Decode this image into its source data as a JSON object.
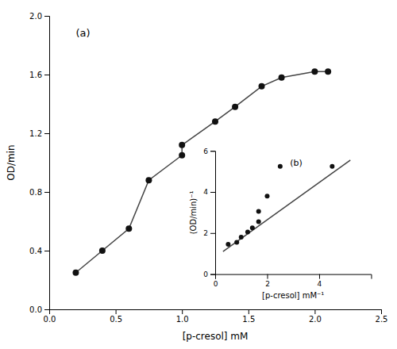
{
  "chart_data": [
    {
      "type": "line",
      "xlabel": "[p-cresol] mM",
      "ylabel": "OD/min",
      "annotation": "(a)",
      "x": [
        0.2,
        0.4,
        0.6,
        0.75,
        1.0,
        1.0,
        1.25,
        1.4,
        1.6,
        1.75,
        2.0,
        2.1
      ],
      "series": [
        {
          "type": "line",
          "color": "#444444",
          "values": [
            0.25,
            0.4,
            0.55,
            0.88,
            1.05,
            1.12,
            1.28,
            1.38,
            1.52,
            1.58,
            1.62,
            1.62
          ]
        },
        {
          "type": "scatter",
          "marker": "circle",
          "color": "#111111",
          "values": [
            0.25,
            0.4,
            0.55,
            0.88,
            1.05,
            1.12,
            1.28,
            1.38,
            1.52,
            1.58,
            1.62,
            1.62
          ]
        }
      ],
      "xlim": [
        0,
        2.5
      ],
      "ylim": [
        0,
        2.0
      ],
      "xticks": [
        {
          "value": 0,
          "label": "0.0"
        },
        0.5,
        {
          "value": 1.0,
          "label": "1.0"
        },
        1.5,
        {
          "value": 2.0,
          "label": "2.0"
        },
        2.5
      ],
      "yticks": [
        {
          "value": 0,
          "label": "0.0"
        },
        0.4,
        0.8,
        1.2,
        1.6,
        {
          "value": 2.0,
          "label": "2.0"
        }
      ]
    },
    {
      "type": "scatter",
      "xlabel": "[p-cresol] mM⁻¹",
      "ylabel": "(OD/min)⁻¹",
      "annotation": "(b)",
      "series": [
        {
          "type": "line",
          "color": "#444444",
          "x": [
            0.3,
            5.2
          ],
          "values": [
            1.1,
            5.55
          ]
        },
        {
          "type": "scatter",
          "marker": "circle",
          "color": "#111111",
          "x": [
            0.5,
            0.83,
            1.0,
            1.25,
            1.43,
            1.67,
            1.67,
            2.0,
            2.5,
            4.5
          ],
          "values": [
            1.45,
            1.55,
            1.8,
            2.05,
            2.25,
            2.55,
            3.05,
            3.8,
            5.25,
            5.25
          ]
        }
      ],
      "xlim": [
        0,
        6
      ],
      "ylim": [
        0,
        6
      ],
      "xticks": [
        0,
        2,
        4
      ],
      "yticks": [
        0,
        2,
        4,
        6
      ]
    }
  ]
}
